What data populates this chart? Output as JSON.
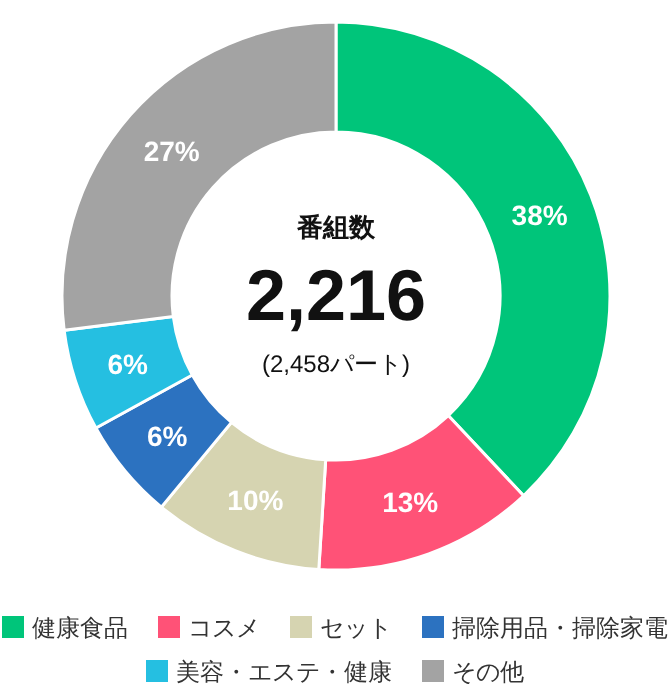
{
  "chart_data": {
    "type": "donut",
    "categories": [
      "健康食品",
      "コスメ",
      "セット",
      "掃除用品・掃除家電",
      "美容・エステ・健康",
      "その他"
    ],
    "values": [
      38,
      13,
      10,
      6,
      6,
      27
    ],
    "colors": [
      "#00c57a",
      "#ff5277",
      "#d6d4b1",
      "#2c72c0",
      "#25bfe1",
      "#a3a3a3"
    ],
    "value_labels": [
      "38%",
      "13%",
      "10%",
      "6%",
      "6%",
      "27%"
    ],
    "legend": "bottom",
    "annotations": [
      "番組数",
      "2,216",
      "(2,458パート)"
    ]
  }
}
